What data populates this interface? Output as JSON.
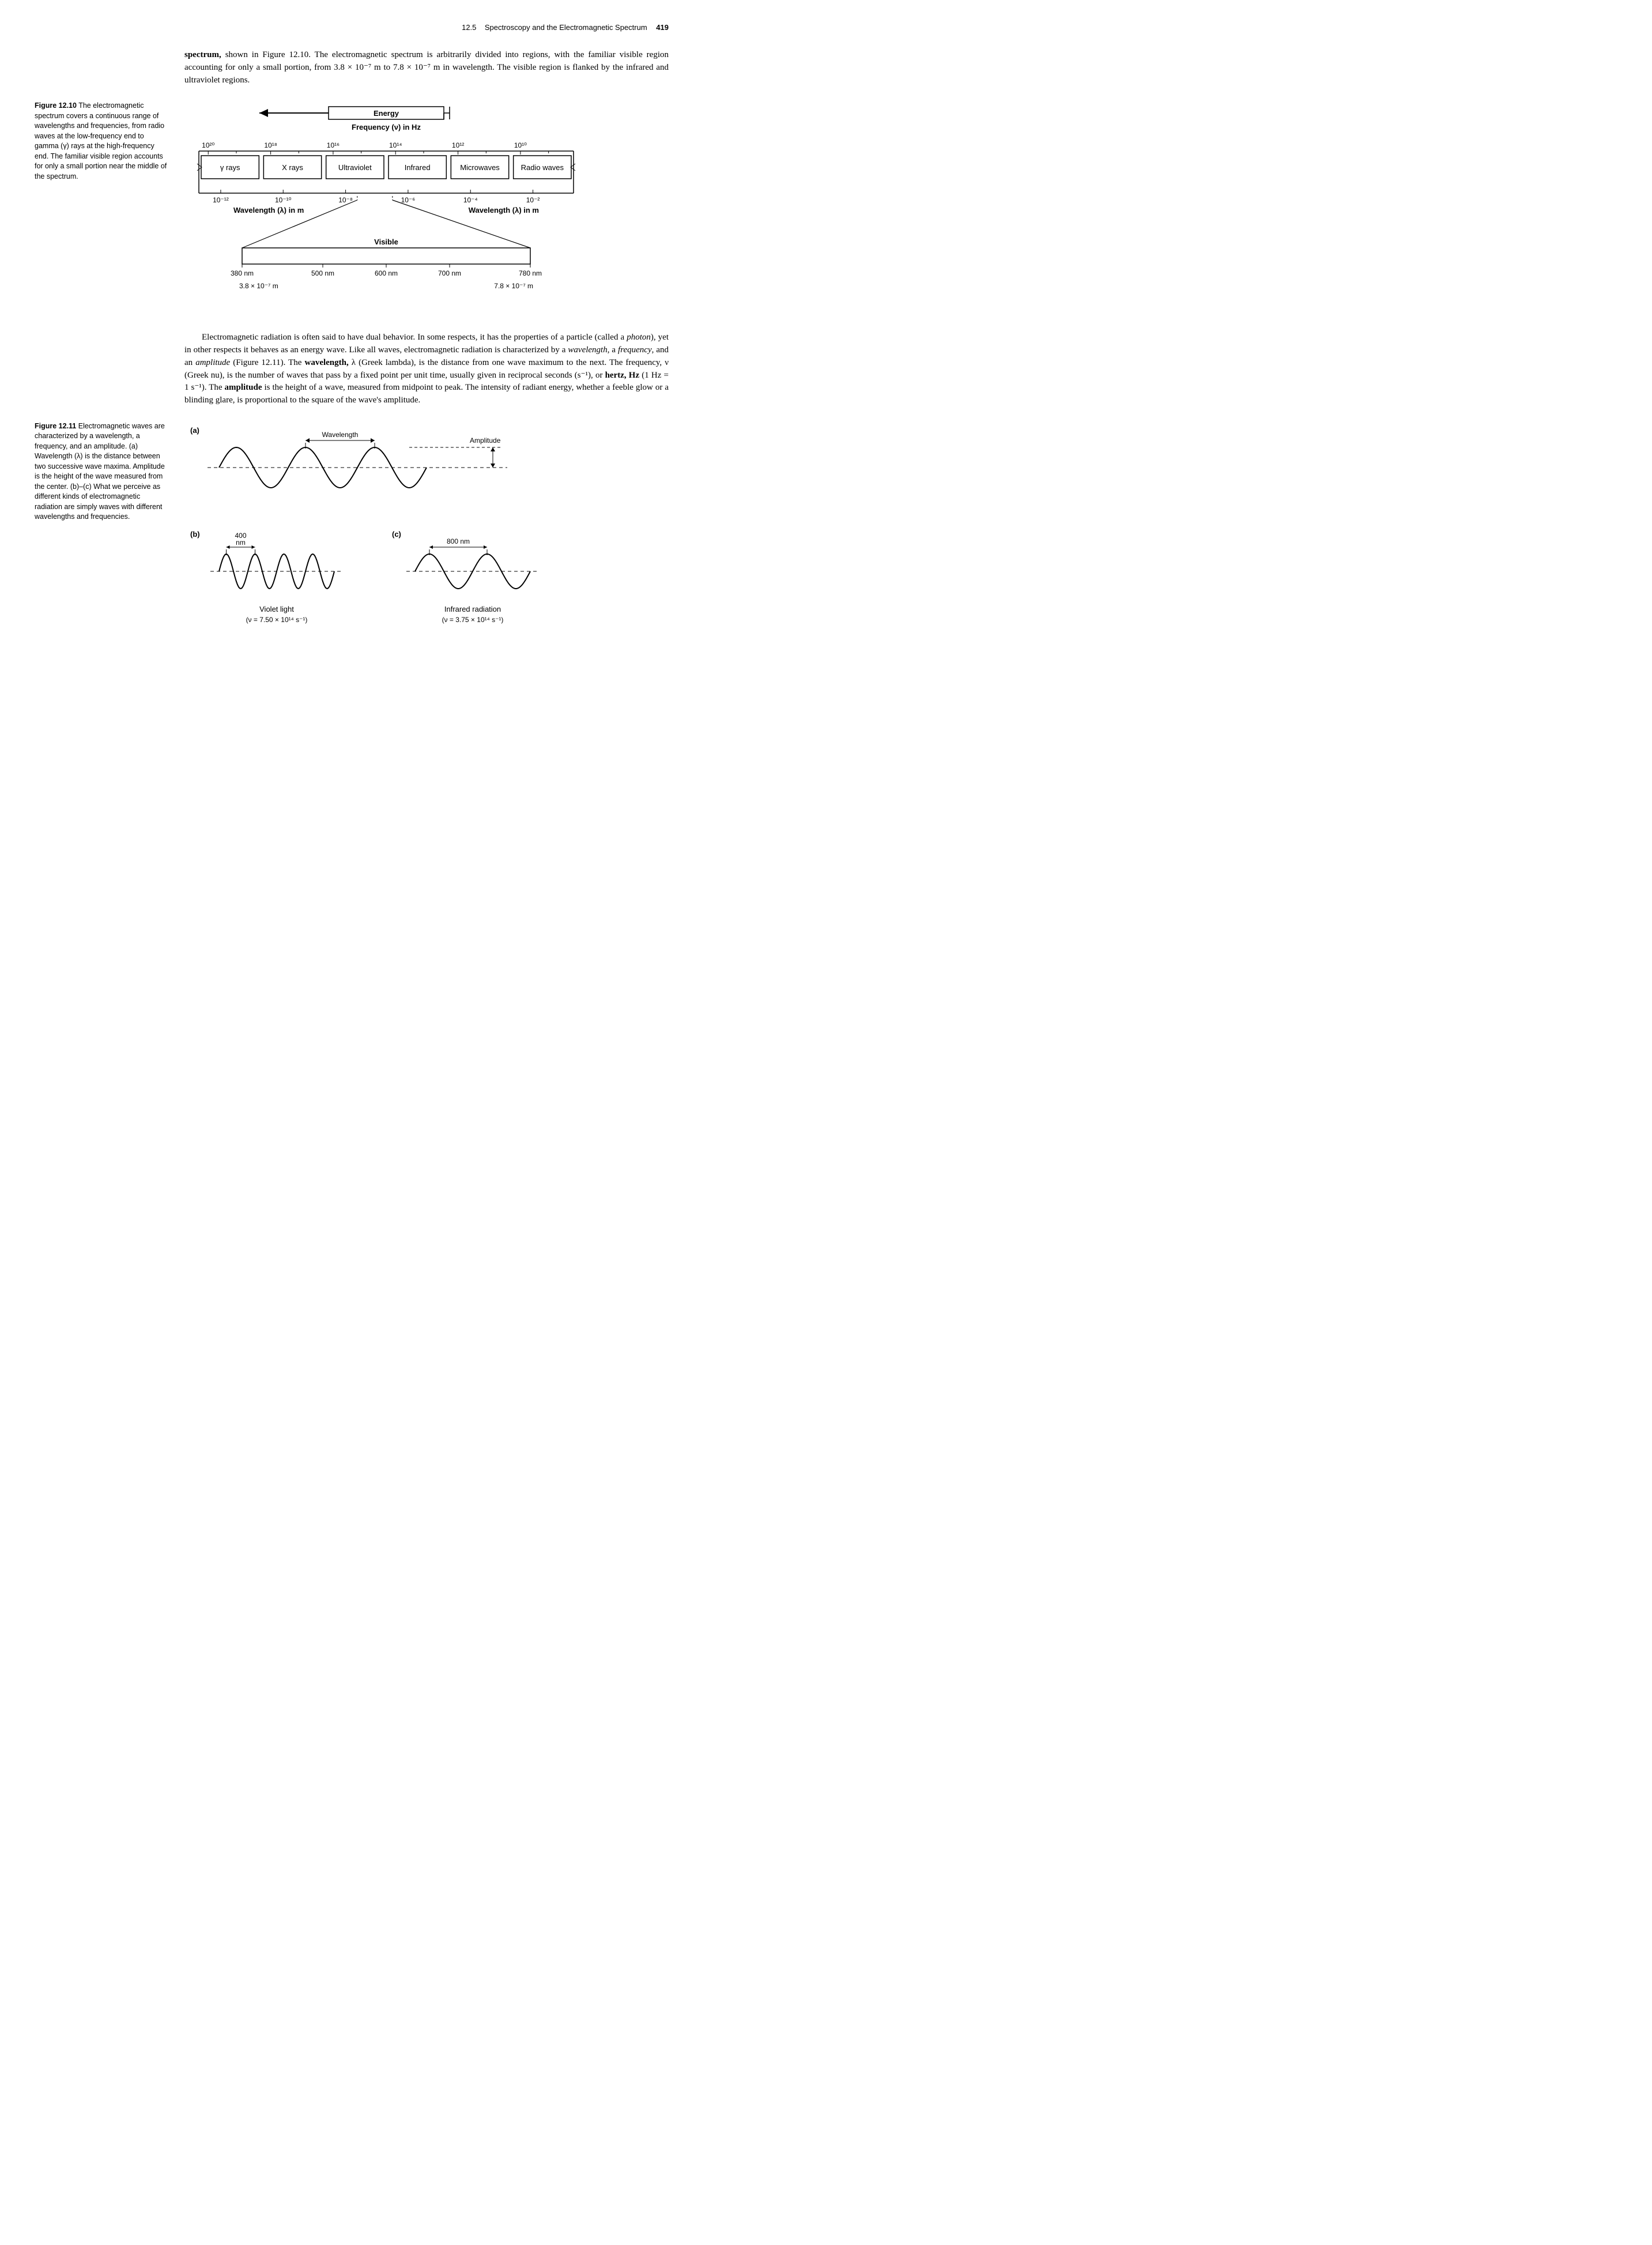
{
  "header": {
    "section": "12.5",
    "title": "Spectroscopy and the Electromagnetic Spectrum",
    "page": "419"
  },
  "paragraph1_parts": [
    {
      "t": "b",
      "v": "spectrum,"
    },
    {
      "t": "",
      "v": " shown in Figure 12.10. The electromagnetic spectrum is arbitrarily divided into regions, with the familiar visible region accounting for only a small portion, from 3.8 × 10⁻⁷ m to 7.8 × 10⁻⁷ m in wavelength. The visible region is flanked by the infrared and ultraviolet regions."
    }
  ],
  "fig1210": {
    "label": "Figure 12.10",
    "caption": " The electromagnetic spectrum covers a continuous range of wavelengths and frequencies, from radio waves at the low-frequency end to gamma (γ) rays at the high-frequency end. The familiar visible region accounts for only a small portion near the middle of the spectrum.",
    "energy_label": "Energy",
    "freq_label": "Frequency (ν) in Hz",
    "freq_ticks": [
      "10²⁰",
      "10¹⁸",
      "10¹⁶",
      "10¹⁴",
      "10¹²",
      "10¹⁰"
    ],
    "bands": [
      "γ rays",
      "X rays",
      "Ultraviolet",
      "Infrared",
      "Microwaves",
      "Radio waves"
    ],
    "wave_ticks": [
      "10⁻¹²",
      "10⁻¹⁰",
      "10⁻⁸",
      "10⁻⁶",
      "10⁻⁴",
      "10⁻²"
    ],
    "wave_label_left": "Wavelength (λ) in m",
    "wave_label_right": "Wavelength (λ) in m",
    "visible_label": "Visible",
    "vis_ticks": [
      "380 nm",
      "500 nm",
      "600 nm",
      "700 nm",
      "780 nm"
    ],
    "vis_left": "3.8 × 10⁻⁷ m",
    "vis_right": "7.8 × 10⁻⁷ m",
    "colors": {
      "line": "#000000",
      "bg": "#ffffff"
    }
  },
  "paragraph2_parts": [
    {
      "t": "",
      "v": "Electromagnetic radiation is often said to have dual behavior. In some respects, it has the properties of a particle (called a "
    },
    {
      "t": "i",
      "v": "photon"
    },
    {
      "t": "",
      "v": "), yet in other respects it behaves as an energy wave. Like all waves, electromagnetic radiation is characterized by a "
    },
    {
      "t": "i",
      "v": "wavelength"
    },
    {
      "t": "",
      "v": ", a "
    },
    {
      "t": "i",
      "v": "frequency"
    },
    {
      "t": "",
      "v": ", and an "
    },
    {
      "t": "i",
      "v": "amplitude"
    },
    {
      "t": "",
      "v": " (Figure 12.11). The "
    },
    {
      "t": "b",
      "v": "wavelength,"
    },
    {
      "t": "",
      "v": " λ (Greek lambda), is the distance from one wave maximum to the next. The frequency, ν (Greek nu), is the number of waves that pass by a fixed point per unit time, usually given in reciprocal seconds (s⁻¹), or "
    },
    {
      "t": "b",
      "v": "hertz, Hz"
    },
    {
      "t": "",
      "v": " (1 Hz = 1 s⁻¹). The "
    },
    {
      "t": "b",
      "v": "amplitude"
    },
    {
      "t": "",
      "v": " is the height of a wave, measured from midpoint to peak. The intensity of radiant energy, whether a feeble glow or a blinding glare, is proportional to the square of the wave's amplitude."
    }
  ],
  "fig1211": {
    "label": "Figure 12.11",
    "caption": " Electromagnetic waves are characterized by a wavelength, a frequency, and an amplitude. (a) Wavelength (λ) is the distance between two successive wave maxima. Amplitude is the height of the wave measured from the center. (b)–(c) What we perceive as different kinds of electromagnetic radiation are simply waves with different wavelengths and frequencies.",
    "a_label": "(a)",
    "b_label": "(b)",
    "c_label": "(c)",
    "wavelength_lbl": "Wavelength",
    "amplitude_lbl": "Amplitude",
    "b_wl": "400",
    "b_wl_unit": "nm",
    "c_wl": "800 nm",
    "b_name": "Violet light",
    "b_freq": "(ν = 7.50 × 10¹⁴ s⁻¹)",
    "c_name": "Infrared radiation",
    "c_freq": "(ν = 3.75 × 10¹⁴ s⁻¹)",
    "wave_a": {
      "cycles": 3,
      "amplitude": 35,
      "period": 120
    },
    "wave_b": {
      "cycles": 4,
      "amplitude": 30,
      "period": 50
    },
    "wave_c": {
      "cycles": 2,
      "amplitude": 30,
      "period": 100
    },
    "colors": {
      "line": "#000000",
      "dash": "#000000"
    }
  }
}
